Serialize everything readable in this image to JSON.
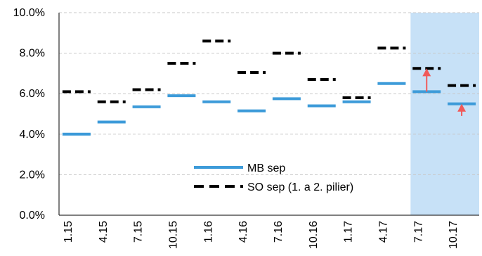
{
  "chart_data": {
    "type": "line",
    "categories": [
      "1.15",
      "4.15",
      "7.15",
      "10.15",
      "1.16",
      "4.16",
      "7.16",
      "10.16",
      "1.17",
      "4.17",
      "7.17",
      "10.17"
    ],
    "series": [
      {
        "name": "MB sep",
        "color": "#3d9bd9",
        "style": "solid",
        "values": [
          4.0,
          4.6,
          5.35,
          5.9,
          5.6,
          5.15,
          5.75,
          5.4,
          5.6,
          6.5,
          6.1,
          5.5
        ]
      },
      {
        "name": "SO sep (1. a 2. pilier)",
        "color": "#000000",
        "style": "dashed",
        "values": [
          6.1,
          5.6,
          6.2,
          7.5,
          8.6,
          7.05,
          8.0,
          6.7,
          5.8,
          8.25,
          7.25,
          6.4
        ]
      }
    ],
    "ylim": [
      0,
      10
    ],
    "yticks": [
      "0.0%",
      "2.0%",
      "4.0%",
      "6.0%",
      "8.0%",
      "10.0%"
    ],
    "grid": true,
    "highlight_region": {
      "from_category": "7.17",
      "to_category": "10.17",
      "color": "#c7e1f7"
    },
    "arrows": [
      {
        "category": "7.17",
        "from": 6.1,
        "to": 7.25,
        "color": "#f05a5a"
      },
      {
        "category": "10.17",
        "from": 4.9,
        "to": 5.5,
        "color": "#f05a5a"
      }
    ],
    "legend_position": "center"
  }
}
